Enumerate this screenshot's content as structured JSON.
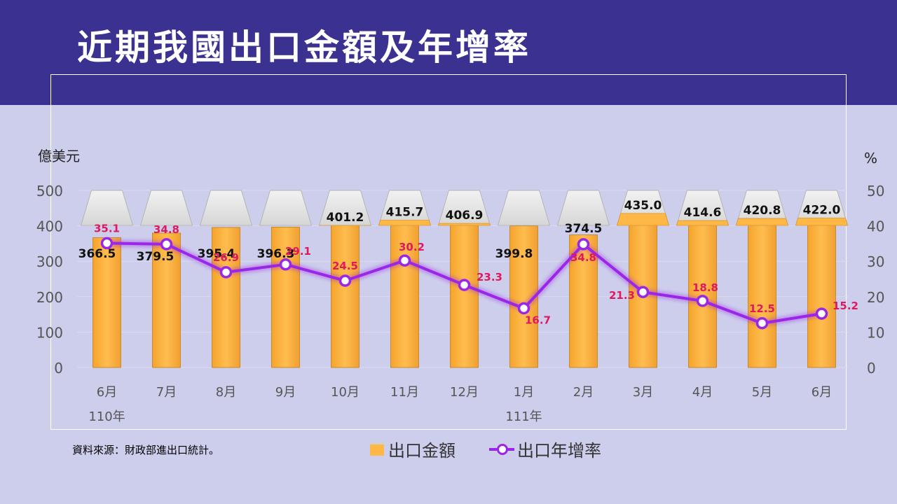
{
  "header": {
    "title": "近期我國出口金額及年增率"
  },
  "footer": {
    "source": "資料來源：財政部進出口統計。"
  },
  "chart_data": {
    "type": "bar+line",
    "left_axis": {
      "unit": "億美元",
      "ticks": [
        "500",
        "400",
        "300",
        "200",
        "100",
        "0"
      ],
      "range": [
        0,
        500
      ]
    },
    "right_axis": {
      "unit": "%",
      "ticks": [
        "50",
        "40",
        "30",
        "20",
        "10",
        "0"
      ],
      "range": [
        0,
        50
      ]
    },
    "categories": [
      "6月",
      "7月",
      "8月",
      "9月",
      "10月",
      "11月",
      "12月",
      "1月",
      "2月",
      "3月",
      "4月",
      "5月",
      "6月"
    ],
    "year_labels": [
      {
        "text": "110年",
        "start_index": 0
      },
      {
        "text": "111年",
        "start_index": 7
      }
    ],
    "series": [
      {
        "name": "出口金額",
        "type": "bar",
        "axis": "left",
        "color": "#ffb845",
        "values": [
          366.5,
          379.5,
          395.4,
          396.3,
          401.2,
          415.7,
          406.9,
          399.8,
          374.5,
          435.0,
          414.6,
          420.8,
          422.0
        ],
        "labels": [
          "366.5",
          "379.5",
          "395.4",
          "396.3",
          "401.2",
          "415.7",
          "406.9",
          "399.8",
          "374.5",
          "435.0",
          "414.6",
          "420.8",
          "422.0"
        ]
      },
      {
        "name": "出口年增率",
        "type": "line",
        "axis": "right",
        "color": "#9b26e8",
        "label_color": "#e0195f",
        "values": [
          35.1,
          34.8,
          26.9,
          29.1,
          24.5,
          30.2,
          23.3,
          16.7,
          34.8,
          21.3,
          18.8,
          12.5,
          15.2
        ],
        "labels": [
          "35.1",
          "34.8",
          "26.9",
          "29.1",
          "24.5",
          "30.2",
          "23.3",
          "16.7",
          "34.8",
          "21.3",
          "18.8",
          "12.5",
          "15.2"
        ]
      }
    ],
    "grid": true,
    "legend": "bottom"
  }
}
